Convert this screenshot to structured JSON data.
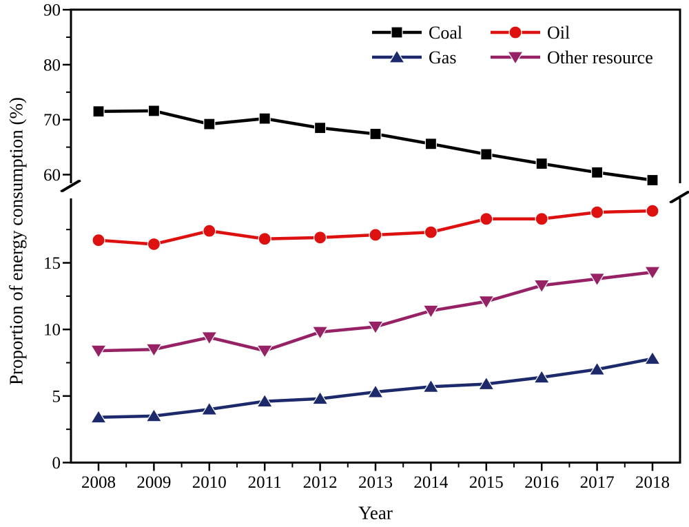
{
  "chart_data": {
    "type": "line",
    "title": "",
    "x_label": "Year",
    "y_label": "Proportion of energy consumption (%)",
    "grid": false,
    "x": [
      2008,
      2009,
      2010,
      2011,
      2012,
      2013,
      2014,
      2015,
      2016,
      2017,
      2018
    ],
    "x_tick_labels": [
      "2008",
      "2009",
      "2010",
      "2011",
      "2012",
      "2013",
      "2014",
      "2015",
      "2016",
      "2017",
      "2018"
    ],
    "y_axis_break": true,
    "upper_axis": {
      "range": [
        60,
        90
      ],
      "major_ticks": [
        60,
        70,
        80,
        90
      ],
      "major_tick_labels": [
        "60",
        "70",
        "80",
        "90"
      ],
      "minor_ticks": [
        65,
        75,
        85
      ]
    },
    "lower_axis": {
      "range": [
        0,
        20
      ],
      "major_ticks": [
        0,
        5,
        10,
        15
      ],
      "major_tick_labels": [
        "0",
        "5",
        "10",
        "15"
      ],
      "minor_ticks": [
        2.5,
        7.5,
        12.5,
        17.5
      ]
    },
    "series": [
      {
        "name": "Coal",
        "color": "#000000",
        "marker": "square",
        "axis_segment": "upper",
        "values": [
          71.5,
          71.6,
          69.2,
          70.2,
          68.5,
          67.4,
          65.6,
          63.7,
          62.0,
          60.4,
          59.0
        ]
      },
      {
        "name": "Oil",
        "color": "#de1111",
        "marker": "circle",
        "axis_segment": "lower",
        "values": [
          16.7,
          16.4,
          17.4,
          16.8,
          16.9,
          17.1,
          17.3,
          18.3,
          18.3,
          18.8,
          18.9
        ]
      },
      {
        "name": "Gas",
        "color": "#1c2a6b",
        "marker": "triangle-up",
        "axis_segment": "lower",
        "values": [
          3.4,
          3.5,
          4.0,
          4.6,
          4.8,
          5.3,
          5.7,
          5.9,
          6.4,
          7.0,
          7.8
        ]
      },
      {
        "name": "Other resource",
        "color": "#962265",
        "marker": "triangle-down",
        "axis_segment": "lower",
        "values": [
          8.4,
          8.5,
          9.4,
          8.4,
          9.8,
          10.2,
          11.4,
          12.1,
          13.3,
          13.8,
          14.3
        ]
      }
    ],
    "legend": {
      "position": "top-right",
      "layout": "two-columns",
      "entries": [
        "Coal",
        "Oil",
        "Gas",
        "Other resource"
      ]
    }
  }
}
